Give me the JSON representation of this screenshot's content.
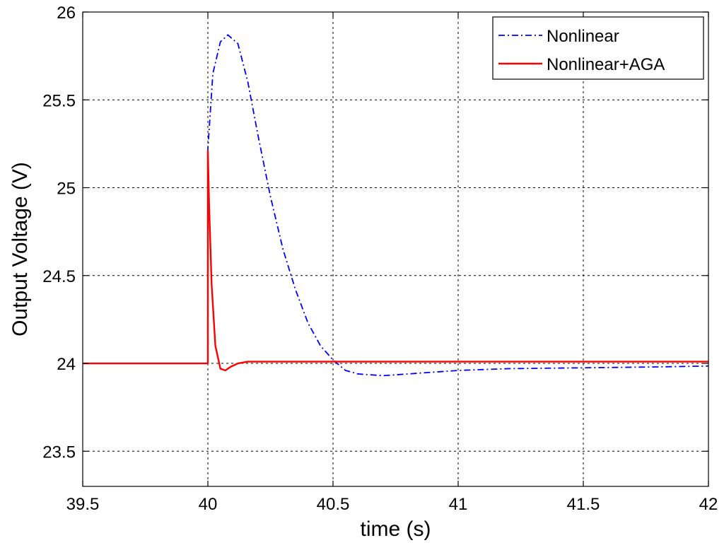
{
  "chart_data": {
    "type": "line",
    "title": "",
    "xlabel": "time (s)",
    "ylabel": "Output Voltage (V)",
    "xlim": [
      39.5,
      42
    ],
    "ylim": [
      23.3,
      26
    ],
    "xticks": [
      "39.5",
      "40",
      "40.5",
      "41",
      "41.5",
      "42"
    ],
    "yticks": [
      "23.5",
      "24",
      "24.5",
      "25",
      "25.5",
      "26"
    ],
    "xtick_values": [
      39.5,
      40,
      40.5,
      41,
      41.5,
      42
    ],
    "ytick_values": [
      23.5,
      24,
      24.5,
      25,
      25.5,
      26
    ],
    "grid": true,
    "legend_position": "top-right",
    "series": [
      {
        "name": "Nonlinear",
        "color": "#0000ff",
        "style": "dash-dot",
        "x": [
          39.5,
          40.0,
          40.0,
          40.02,
          40.05,
          40.08,
          40.12,
          40.16,
          40.2,
          40.25,
          40.3,
          40.35,
          40.4,
          40.45,
          40.5,
          40.55,
          40.6,
          40.7,
          40.8,
          40.9,
          41.0,
          41.2,
          41.5,
          41.8,
          42.0
        ],
        "y": [
          24.0,
          24.0,
          25.22,
          25.65,
          25.83,
          25.87,
          25.82,
          25.6,
          25.3,
          24.95,
          24.65,
          24.42,
          24.23,
          24.1,
          24.02,
          23.96,
          23.94,
          23.93,
          23.94,
          23.95,
          23.96,
          23.97,
          23.975,
          23.98,
          23.985
        ]
      },
      {
        "name": "Nonlinear+AGA",
        "color": "#ff0000",
        "style": "solid",
        "x": [
          39.5,
          40.0,
          40.0,
          40.005,
          40.015,
          40.03,
          40.05,
          40.07,
          40.09,
          40.12,
          40.16,
          40.3,
          41.0,
          42.0
        ],
        "y": [
          24.0,
          24.0,
          25.21,
          24.9,
          24.45,
          24.1,
          23.97,
          23.96,
          23.98,
          24.0,
          24.01,
          24.01,
          24.01,
          24.01
        ]
      }
    ]
  }
}
